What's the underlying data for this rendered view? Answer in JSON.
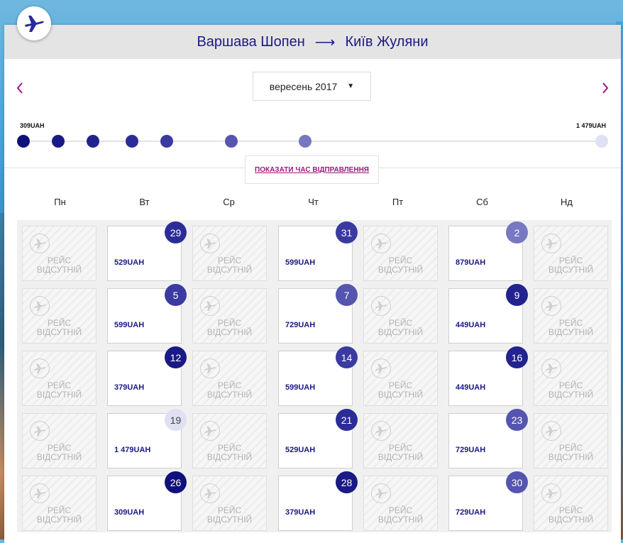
{
  "route": {
    "origin": "Варшава Шопен",
    "destination": "Київ Жуляни"
  },
  "month_selector": {
    "value": "вересень 2017"
  },
  "price_range": {
    "min": "309UAH",
    "max": "1 479UAH"
  },
  "show_times_label": "ПОКАЗАТИ ЧАС ВІДПРАВЛЕННЯ",
  "weekdays": [
    "Пн",
    "Вт",
    "Ср",
    "Чт",
    "Пт",
    "Сб",
    "Нд"
  ],
  "no_flight_line1": "РЕЙС",
  "no_flight_line2": "ВІДСУТНІЙ",
  "colors": {
    "accent": "#a0157c",
    "brand": "#1b1a82"
  },
  "slider_dots": [
    {
      "price": 309,
      "color": "#10107c"
    },
    {
      "price": 379,
      "color": "#1a1a86"
    },
    {
      "price": 449,
      "color": "#22238f"
    },
    {
      "price": 529,
      "color": "#2c2c98"
    },
    {
      "price": 599,
      "color": "#3a3aa1"
    },
    {
      "price": 729,
      "color": "#5555b0"
    },
    {
      "price": 879,
      "color": "#7777c2"
    },
    {
      "price": 1479,
      "color": "#dfe0f2"
    }
  ],
  "weeks": [
    [
      {
        "available": false
      },
      {
        "available": true,
        "day": "29",
        "price": "529UAH",
        "color": "#2c2c98"
      },
      {
        "available": false
      },
      {
        "available": true,
        "day": "31",
        "price": "599UAH",
        "color": "#3a3aa1"
      },
      {
        "available": false
      },
      {
        "available": true,
        "day": "2",
        "price": "879UAH",
        "color": "#7777c2"
      },
      {
        "available": false
      }
    ],
    [
      {
        "available": false
      },
      {
        "available": true,
        "day": "5",
        "price": "599UAH",
        "color": "#3a3aa1"
      },
      {
        "available": false
      },
      {
        "available": true,
        "day": "7",
        "price": "729UAH",
        "color": "#5555b0"
      },
      {
        "available": false
      },
      {
        "available": true,
        "day": "9",
        "price": "449UAH",
        "color": "#22238f"
      },
      {
        "available": false
      }
    ],
    [
      {
        "available": false
      },
      {
        "available": true,
        "day": "12",
        "price": "379UAH",
        "color": "#1a1a86"
      },
      {
        "available": false
      },
      {
        "available": true,
        "day": "14",
        "price": "599UAH",
        "color": "#3a3aa1"
      },
      {
        "available": false
      },
      {
        "available": true,
        "day": "16",
        "price": "449UAH",
        "color": "#22238f"
      },
      {
        "available": false
      }
    ],
    [
      {
        "available": false
      },
      {
        "available": true,
        "day": "19",
        "price": "1 479UAH",
        "color": "#dfe0f2",
        "text_color": "#444"
      },
      {
        "available": false
      },
      {
        "available": true,
        "day": "21",
        "price": "529UAH",
        "color": "#2c2c98"
      },
      {
        "available": false
      },
      {
        "available": true,
        "day": "23",
        "price": "729UAH",
        "color": "#5555b0"
      },
      {
        "available": false
      }
    ],
    [
      {
        "available": false
      },
      {
        "available": true,
        "day": "26",
        "price": "309UAH",
        "color": "#10107c"
      },
      {
        "available": false
      },
      {
        "available": true,
        "day": "28",
        "price": "379UAH",
        "color": "#1a1a86"
      },
      {
        "available": false
      },
      {
        "available": true,
        "day": "30",
        "price": "729UAH",
        "color": "#5555b0"
      },
      {
        "available": false
      }
    ]
  ]
}
